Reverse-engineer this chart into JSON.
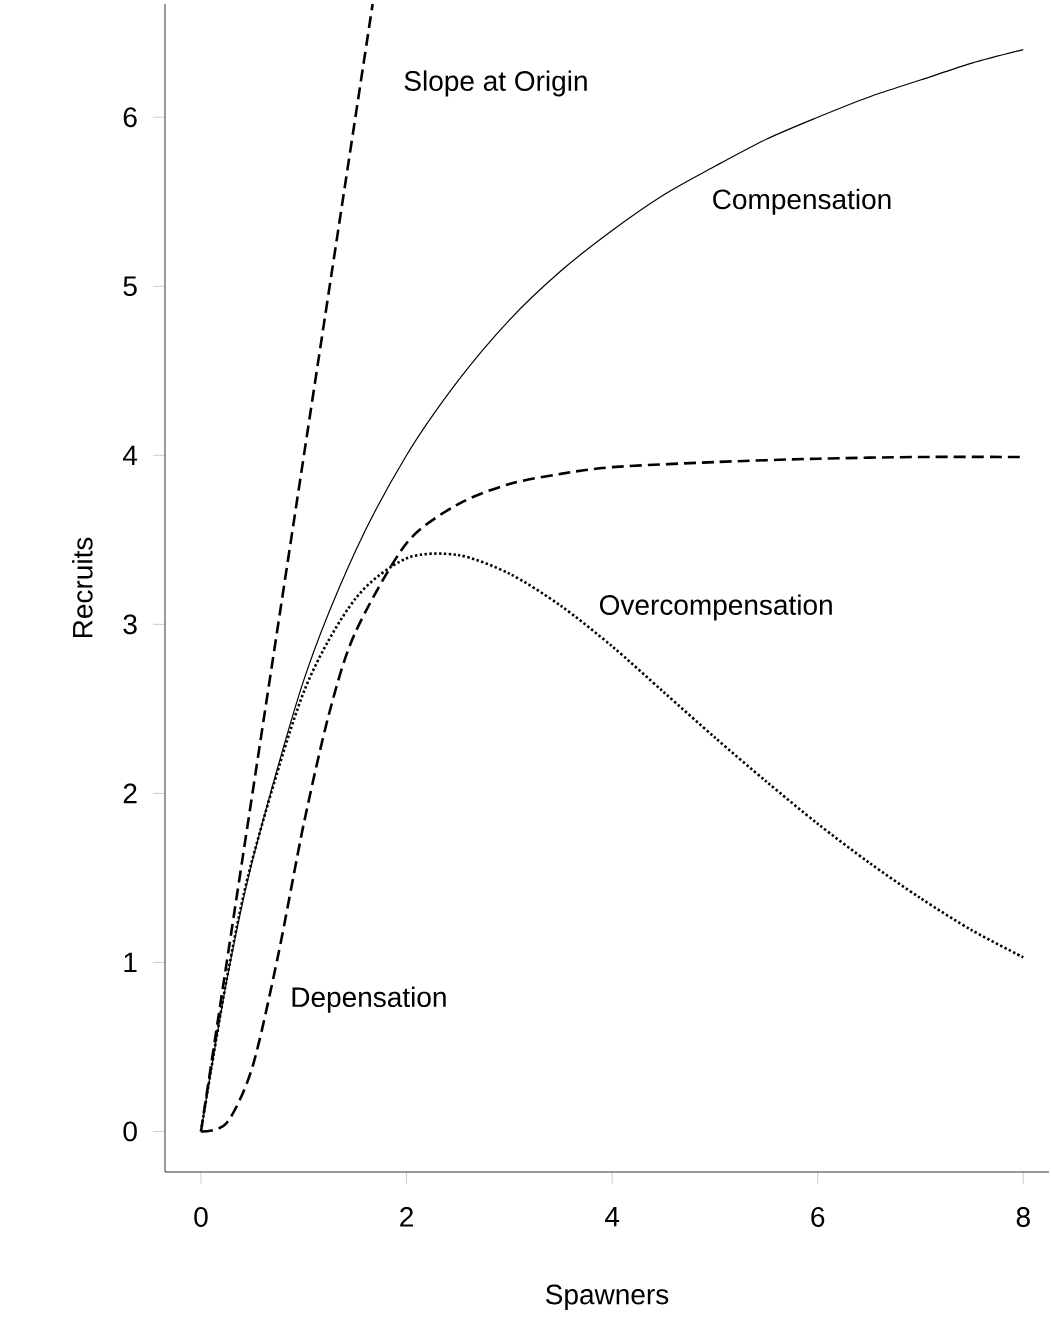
{
  "chart_data": {
    "type": "line",
    "xlabel": "Spawners",
    "ylabel": "Recruits",
    "xlim": [
      -0.35,
      8.25
    ],
    "ylim": [
      -0.24,
      6.67
    ],
    "xticks": [
      0,
      2,
      4,
      6,
      8
    ],
    "yticks": [
      0,
      1,
      2,
      3,
      4,
      5,
      6
    ],
    "grid": false,
    "marker": "none",
    "series": [
      {
        "name": "Slope at Origin",
        "color": "#000000",
        "line_style": "dashed",
        "x": [
          0,
          1.67
        ],
        "values": [
          0,
          6.67
        ]
      },
      {
        "name": "Compensation",
        "color": "#000000",
        "line_style": "solid",
        "x": [
          0,
          0.25,
          0.5,
          1,
          1.5,
          2,
          2.5,
          3,
          3.5,
          4,
          4.5,
          5,
          5.5,
          6,
          6.5,
          7,
          7.5,
          8
        ],
        "values": [
          0,
          0.89,
          1.6,
          2.67,
          3.43,
          4,
          4.44,
          4.8,
          5.09,
          5.33,
          5.54,
          5.71,
          5.87,
          6,
          6.12,
          6.22,
          6.32,
          6.4
        ]
      },
      {
        "name": "Overcompensation",
        "color": "#000000",
        "line_style": "dotted",
        "x": [
          0,
          0.25,
          0.5,
          1,
          1.5,
          2,
          2.5,
          3,
          3.5,
          4,
          4.5,
          5,
          5.5,
          6,
          6.5,
          7,
          7.5,
          8
        ],
        "values": [
          0,
          0.9,
          1.61,
          2.6,
          3.15,
          3.39,
          3.41,
          3.3,
          3.11,
          2.87,
          2.6,
          2.33,
          2.07,
          1.82,
          1.59,
          1.38,
          1.19,
          1.03
        ]
      },
      {
        "name": "Depensation",
        "color": "#000000",
        "line_style": "dashed",
        "x": [
          0,
          0.25,
          0.5,
          0.75,
          1,
          1.25,
          1.5,
          2,
          2.5,
          3,
          3.5,
          4,
          5,
          6,
          7,
          8
        ],
        "values": [
          0,
          0.05,
          0.38,
          1.04,
          1.82,
          2.48,
          2.95,
          3.48,
          3.71,
          3.83,
          3.89,
          3.93,
          3.96,
          3.98,
          3.99,
          3.99
        ]
      }
    ]
  }
}
